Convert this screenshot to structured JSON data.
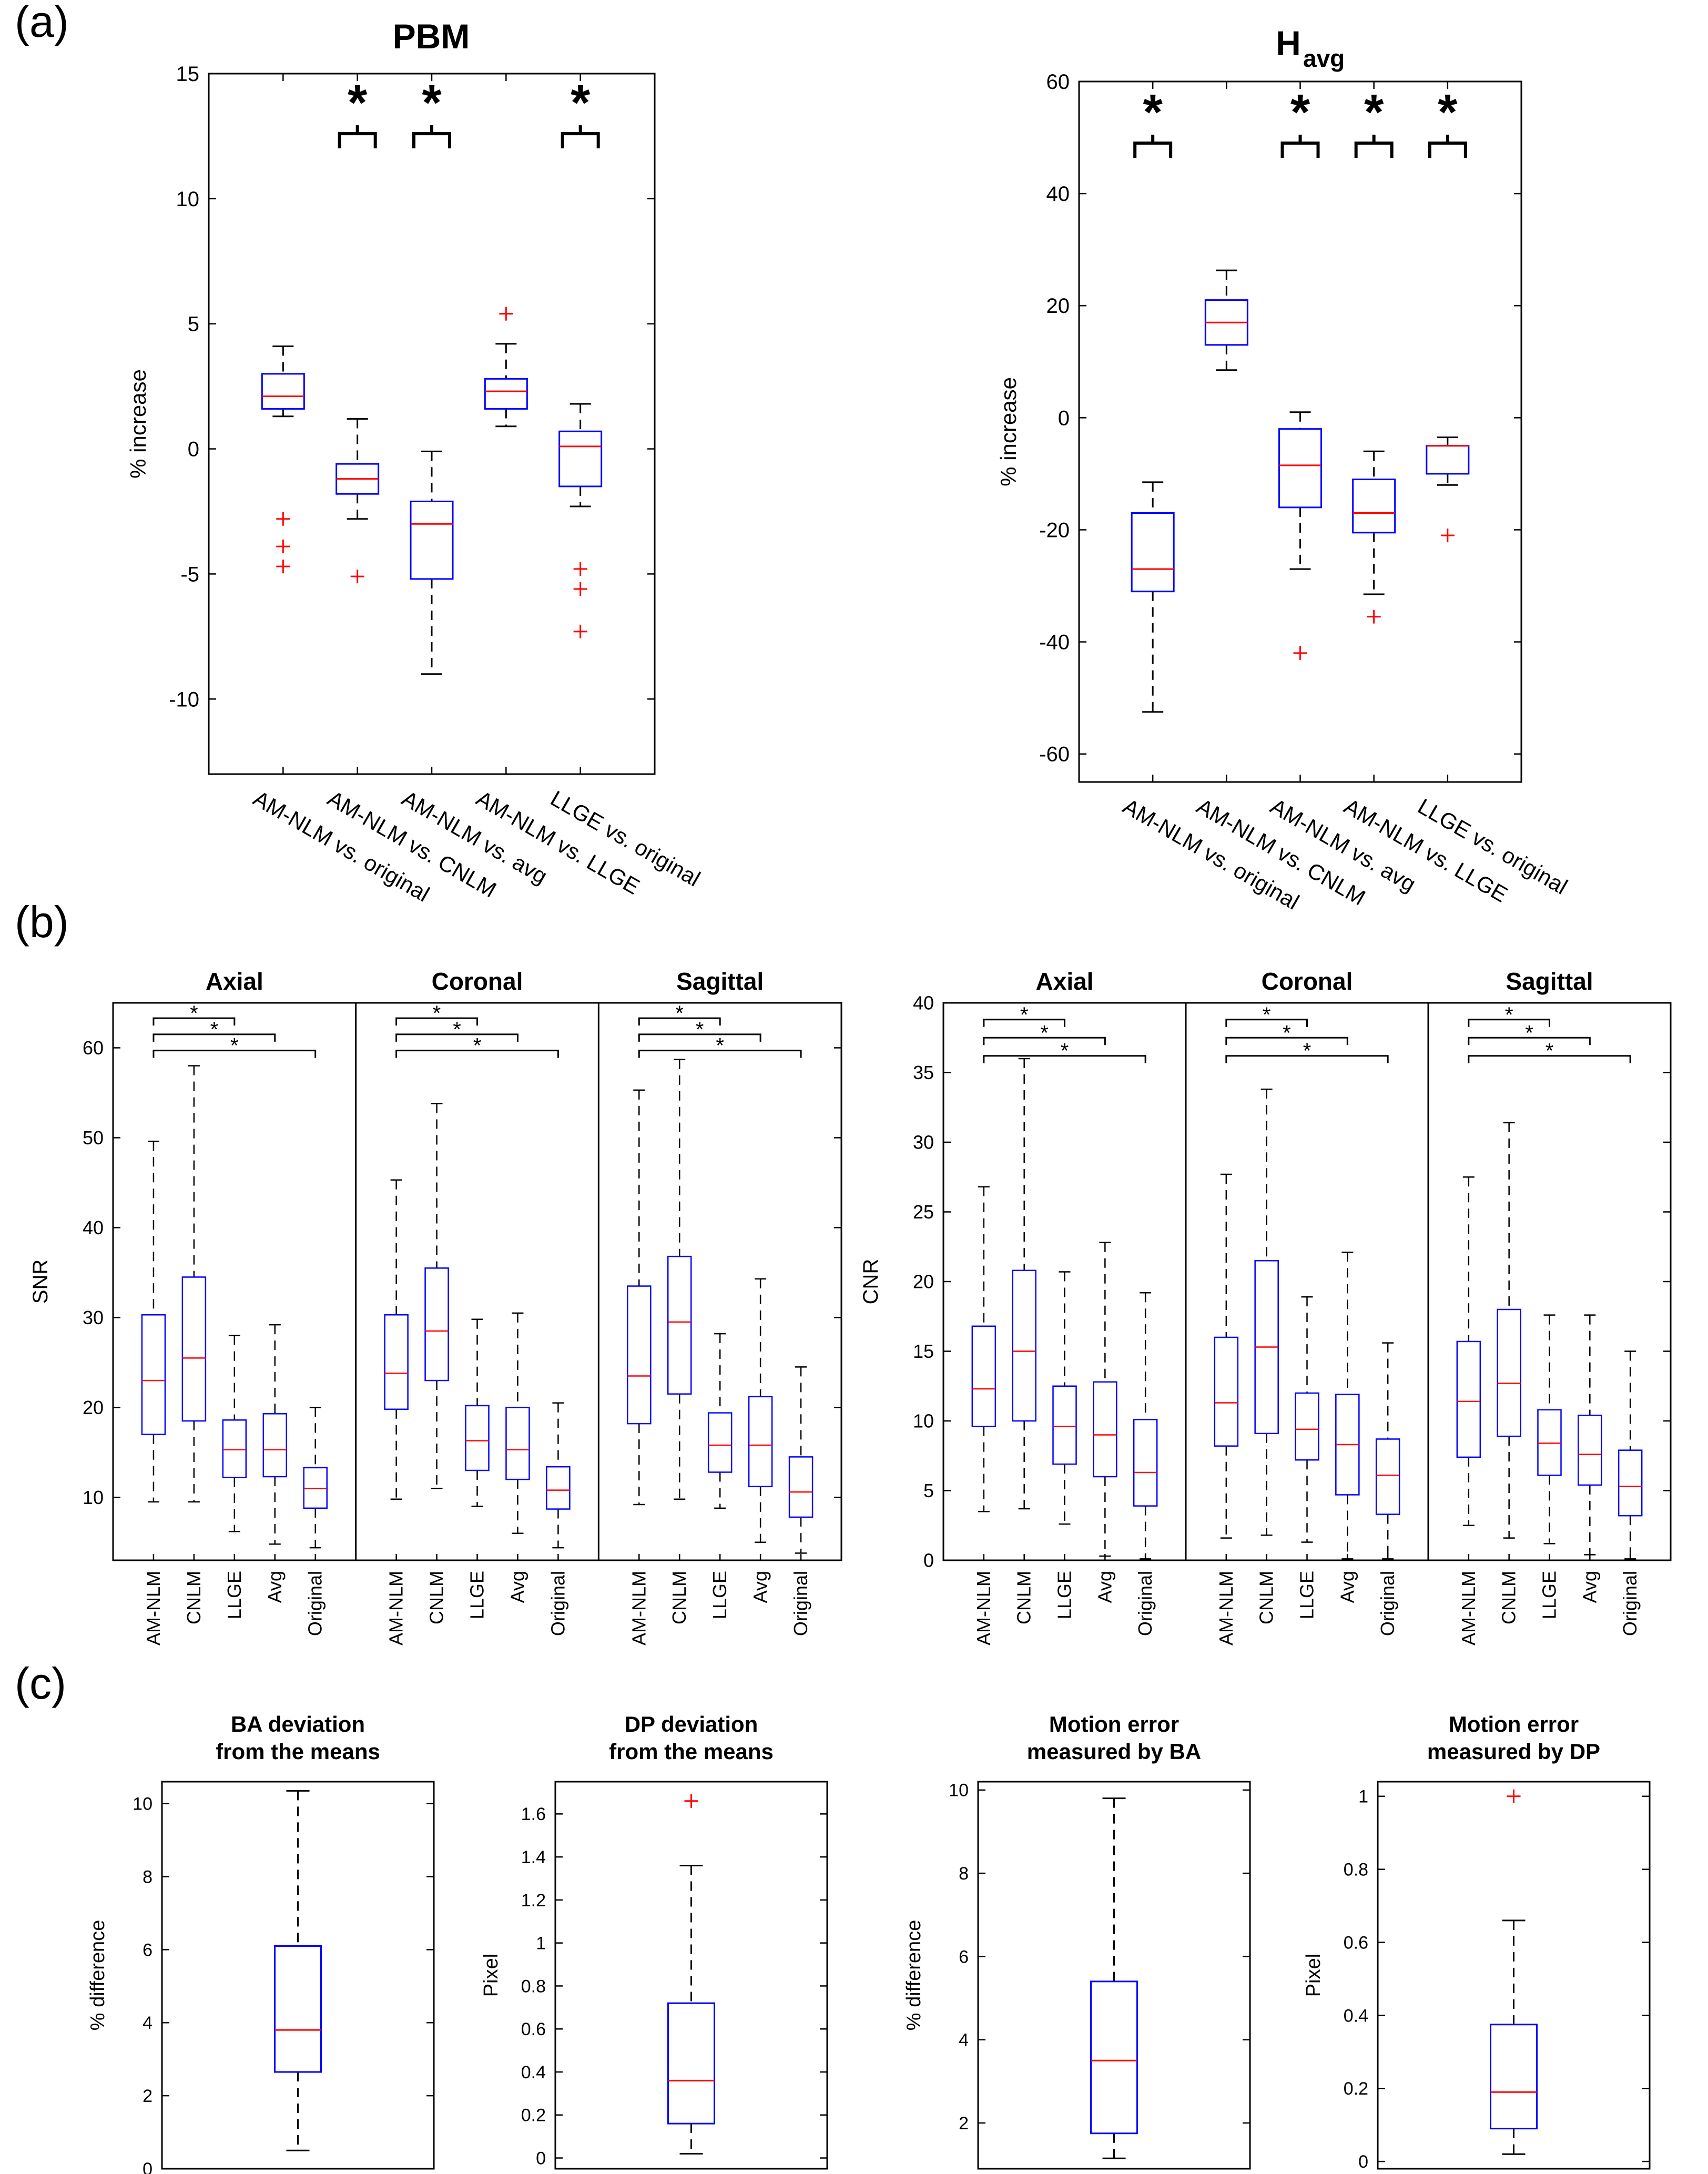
{
  "panel_labels": [
    "(a)",
    "(b)",
    "(c)"
  ],
  "colors": {
    "box": "#0000ff",
    "median": "#ff0000",
    "whisker": "#000000",
    "outlier": "#ff0000",
    "axis": "#000000"
  },
  "chart_data": [
    {
      "id": "pbm",
      "type": "boxplot",
      "title": "PBM",
      "ylabel": "% increase",
      "ylim": [
        -13,
        15
      ],
      "yticks": [
        -10,
        -5,
        0,
        5,
        10,
        15
      ],
      "categories": [
        "AM-NLM vs. original",
        "AM-NLM vs. CNLM",
        "AM-NLM vs. avg",
        "AM-NLM vs. LLGE",
        "LLGE vs. original"
      ],
      "boxes": [
        {
          "q1": 1.6,
          "median": 2.1,
          "q3": 3.0,
          "wlo": 1.3,
          "whi": 4.1,
          "outliers": [
            -2.8,
            -3.9,
            -4.7
          ]
        },
        {
          "q1": -1.8,
          "median": -1.2,
          "q3": -0.6,
          "wlo": -2.8,
          "whi": 1.2,
          "outliers": [
            -5.1
          ]
        },
        {
          "q1": -5.2,
          "median": -3.0,
          "q3": -2.1,
          "wlo": -9.0,
          "whi": -0.1,
          "outliers": []
        },
        {
          "q1": 1.6,
          "median": 2.3,
          "q3": 2.8,
          "wlo": 0.9,
          "whi": 4.2,
          "outliers": [
            5.4
          ]
        },
        {
          "q1": -1.5,
          "median": 0.1,
          "q3": 0.7,
          "wlo": -2.3,
          "whi": 1.8,
          "outliers": [
            -4.8,
            -5.6,
            -7.3
          ]
        }
      ],
      "significance": [
        1,
        2,
        4
      ],
      "sig_y": 12.6,
      "sig_mark": "*"
    },
    {
      "id": "havg",
      "type": "boxplot",
      "title": "H",
      "title_sub": "avg",
      "ylabel": "% increase",
      "ylim": [
        -65,
        60
      ],
      "yticks": [
        -60,
        -40,
        -20,
        0,
        20,
        40,
        60
      ],
      "categories": [
        "AM-NLM vs. original",
        "AM-NLM vs. CNLM",
        "AM-NLM vs. avg",
        "AM-NLM vs. LLGE",
        "LLGE vs. original"
      ],
      "boxes": [
        {
          "q1": -31,
          "median": -27,
          "q3": -17,
          "wlo": -52.5,
          "whi": -11.5,
          "outliers": []
        },
        {
          "q1": 13,
          "median": 17,
          "q3": 21,
          "wlo": 8.5,
          "whi": 26.3,
          "outliers": []
        },
        {
          "q1": -16,
          "median": -8.5,
          "q3": -2,
          "wlo": -27,
          "whi": 1,
          "outliers": [
            -42
          ]
        },
        {
          "q1": -20.5,
          "median": -17,
          "q3": -11,
          "wlo": -31.5,
          "whi": -6,
          "outliers": [
            -35.5
          ]
        },
        {
          "q1": -10,
          "median": -5,
          "q3": -5,
          "wlo": -12,
          "whi": -3.5,
          "outliers": [
            -21
          ]
        }
      ],
      "significance": [
        0,
        2,
        3,
        4
      ],
      "sig_y": 49,
      "sig_mark": "*"
    },
    {
      "id": "snr",
      "type": "boxplot-grouped",
      "ylabel": "SNR",
      "ylim": [
        3,
        65
      ],
      "yticks": [
        10,
        20,
        30,
        40,
        50,
        60
      ],
      "groups": [
        "Axial",
        "Coronal",
        "Sagittal"
      ],
      "categories": [
        "AM-NLM",
        "CNLM",
        "LLGE",
        "Avg",
        "Original"
      ],
      "boxes": [
        [
          {
            "q1": 17,
            "median": 23,
            "q3": 30.3,
            "wlo": 9.5,
            "whi": 49.6
          },
          {
            "q1": 18.5,
            "median": 25.5,
            "q3": 34.5,
            "wlo": 9.5,
            "whi": 58
          },
          {
            "q1": 12.2,
            "median": 15.3,
            "q3": 18.6,
            "wlo": 6.2,
            "whi": 28
          },
          {
            "q1": 12.3,
            "median": 15.3,
            "q3": 19.3,
            "wlo": 4.8,
            "whi": 29.2
          },
          {
            "q1": 8.8,
            "median": 11,
            "q3": 13.3,
            "wlo": 4.4,
            "whi": 20
          }
        ],
        [
          {
            "q1": 19.8,
            "median": 23.8,
            "q3": 30.3,
            "wlo": 9.8,
            "whi": 45.3
          },
          {
            "q1": 23,
            "median": 28.5,
            "q3": 35.5,
            "wlo": 11,
            "whi": 53.8
          },
          {
            "q1": 13,
            "median": 16.3,
            "q3": 20.2,
            "wlo": 9,
            "whi": 29.8
          },
          {
            "q1": 12,
            "median": 15.3,
            "q3": 20,
            "wlo": 6,
            "whi": 30.5
          },
          {
            "q1": 8.7,
            "median": 10.8,
            "q3": 13.4,
            "wlo": 4.4,
            "whi": 20.5
          }
        ],
        [
          {
            "q1": 18.2,
            "median": 23.5,
            "q3": 33.5,
            "wlo": 9.2,
            "whi": 55.3
          },
          {
            "q1": 21.5,
            "median": 29.5,
            "q3": 36.8,
            "wlo": 9.8,
            "whi": 58.7
          },
          {
            "q1": 12.8,
            "median": 15.8,
            "q3": 19.4,
            "wlo": 8.8,
            "whi": 28.2
          },
          {
            "q1": 11.2,
            "median": 15.8,
            "q3": 21.2,
            "wlo": 5,
            "whi": 34.3
          },
          {
            "q1": 7.8,
            "median": 10.6,
            "q3": 14.5,
            "wlo": 3.8,
            "whi": 24.5
          }
        ]
      ],
      "sig_targets": [
        2,
        3,
        4
      ],
      "sig_levels": [
        63.3,
        61.5,
        59.7
      ],
      "sig_mark": "*"
    },
    {
      "id": "cnr",
      "type": "boxplot-grouped",
      "ylabel": "CNR",
      "ylim": [
        0,
        40
      ],
      "yticks": [
        0,
        5,
        10,
        15,
        20,
        25,
        30,
        35,
        40
      ],
      "groups": [
        "Axial",
        "Coronal",
        "Sagittal"
      ],
      "categories": [
        "AM-NLM",
        "CNLM",
        "LLGE",
        "Avg",
        "Original"
      ],
      "boxes": [
        [
          {
            "q1": 9.6,
            "median": 12.3,
            "q3": 16.8,
            "wlo": 3.5,
            "whi": 26.8
          },
          {
            "q1": 10,
            "median": 15,
            "q3": 20.8,
            "wlo": 3.7,
            "whi": 36
          },
          {
            "q1": 6.9,
            "median": 9.6,
            "q3": 12.5,
            "wlo": 2.6,
            "whi": 20.7
          },
          {
            "q1": 6,
            "median": 9,
            "q3": 12.8,
            "wlo": 0.3,
            "whi": 22.8
          },
          {
            "q1": 3.9,
            "median": 6.3,
            "q3": 10.1,
            "wlo": 0.1,
            "whi": 19.2
          }
        ],
        [
          {
            "q1": 8.2,
            "median": 11.3,
            "q3": 16,
            "wlo": 1.6,
            "whi": 27.7
          },
          {
            "q1": 9.1,
            "median": 15.3,
            "q3": 21.5,
            "wlo": 1.8,
            "whi": 33.8
          },
          {
            "q1": 7.2,
            "median": 9.4,
            "q3": 12,
            "wlo": 1.3,
            "whi": 18.9
          },
          {
            "q1": 4.7,
            "median": 8.3,
            "q3": 11.9,
            "wlo": 0.1,
            "whi": 22.1
          },
          {
            "q1": 3.3,
            "median": 6.1,
            "q3": 8.7,
            "wlo": 0.1,
            "whi": 15.6
          }
        ],
        [
          {
            "q1": 7.4,
            "median": 11.4,
            "q3": 15.7,
            "wlo": 2.5,
            "whi": 27.5
          },
          {
            "q1": 8.9,
            "median": 12.7,
            "q3": 18,
            "wlo": 1.6,
            "whi": 31.4
          },
          {
            "q1": 6.1,
            "median": 8.4,
            "q3": 10.8,
            "wlo": 1.2,
            "whi": 17.6
          },
          {
            "q1": 5.4,
            "median": 7.6,
            "q3": 10.4,
            "wlo": 0.4,
            "whi": 17.6
          },
          {
            "q1": 3.2,
            "median": 5.3,
            "q3": 7.9,
            "wlo": 0.1,
            "whi": 15
          }
        ]
      ],
      "sig_targets": [
        2,
        3,
        4
      ],
      "sig_levels": [
        38.8,
        37.5,
        36.2
      ],
      "sig_mark": "*"
    },
    {
      "id": "c1",
      "type": "boxplot",
      "title_lines": [
        "BA deviation",
        "from the means"
      ],
      "ylabel": "% difference",
      "ylim": [
        0,
        10.6
      ],
      "yticks": [
        0,
        2,
        4,
        6,
        8,
        10
      ],
      "box": {
        "q1": 2.65,
        "median": 3.8,
        "q3": 6.1,
        "wlo": 0.5,
        "whi": 10.35,
        "outliers": []
      }
    },
    {
      "id": "c2",
      "type": "boxplot",
      "title_lines": [
        "DP deviation",
        "from the means"
      ],
      "ylabel": "Pixel",
      "ylim": [
        -0.05,
        1.75
      ],
      "yticks": [
        0,
        0.2,
        0.4,
        0.6,
        0.8,
        1,
        1.2,
        1.4,
        1.6
      ],
      "box": {
        "q1": 0.16,
        "median": 0.36,
        "q3": 0.72,
        "wlo": 0.02,
        "whi": 1.36,
        "outliers": [
          1.66
        ]
      }
    },
    {
      "id": "c3",
      "type": "boxplot",
      "title_lines": [
        "Motion error",
        "measured by BA"
      ],
      "ylabel": "% difference",
      "ylim": [
        0.9,
        10.2
      ],
      "yticks": [
        2,
        4,
        6,
        8,
        10
      ],
      "box": {
        "q1": 1.75,
        "median": 3.5,
        "q3": 5.4,
        "wlo": 1.15,
        "whi": 9.8,
        "outliers": []
      }
    },
    {
      "id": "c4",
      "type": "boxplot",
      "title_lines": [
        "Motion error",
        "measured by DP"
      ],
      "ylabel": "Pixel",
      "ylim": [
        -0.02,
        1.04
      ],
      "yticks": [
        0,
        0.2,
        0.4,
        0.6,
        0.8,
        1
      ],
      "box": {
        "q1": 0.09,
        "median": 0.19,
        "q3": 0.375,
        "wlo": 0.02,
        "whi": 0.66,
        "outliers": [
          1.0
        ]
      }
    }
  ]
}
